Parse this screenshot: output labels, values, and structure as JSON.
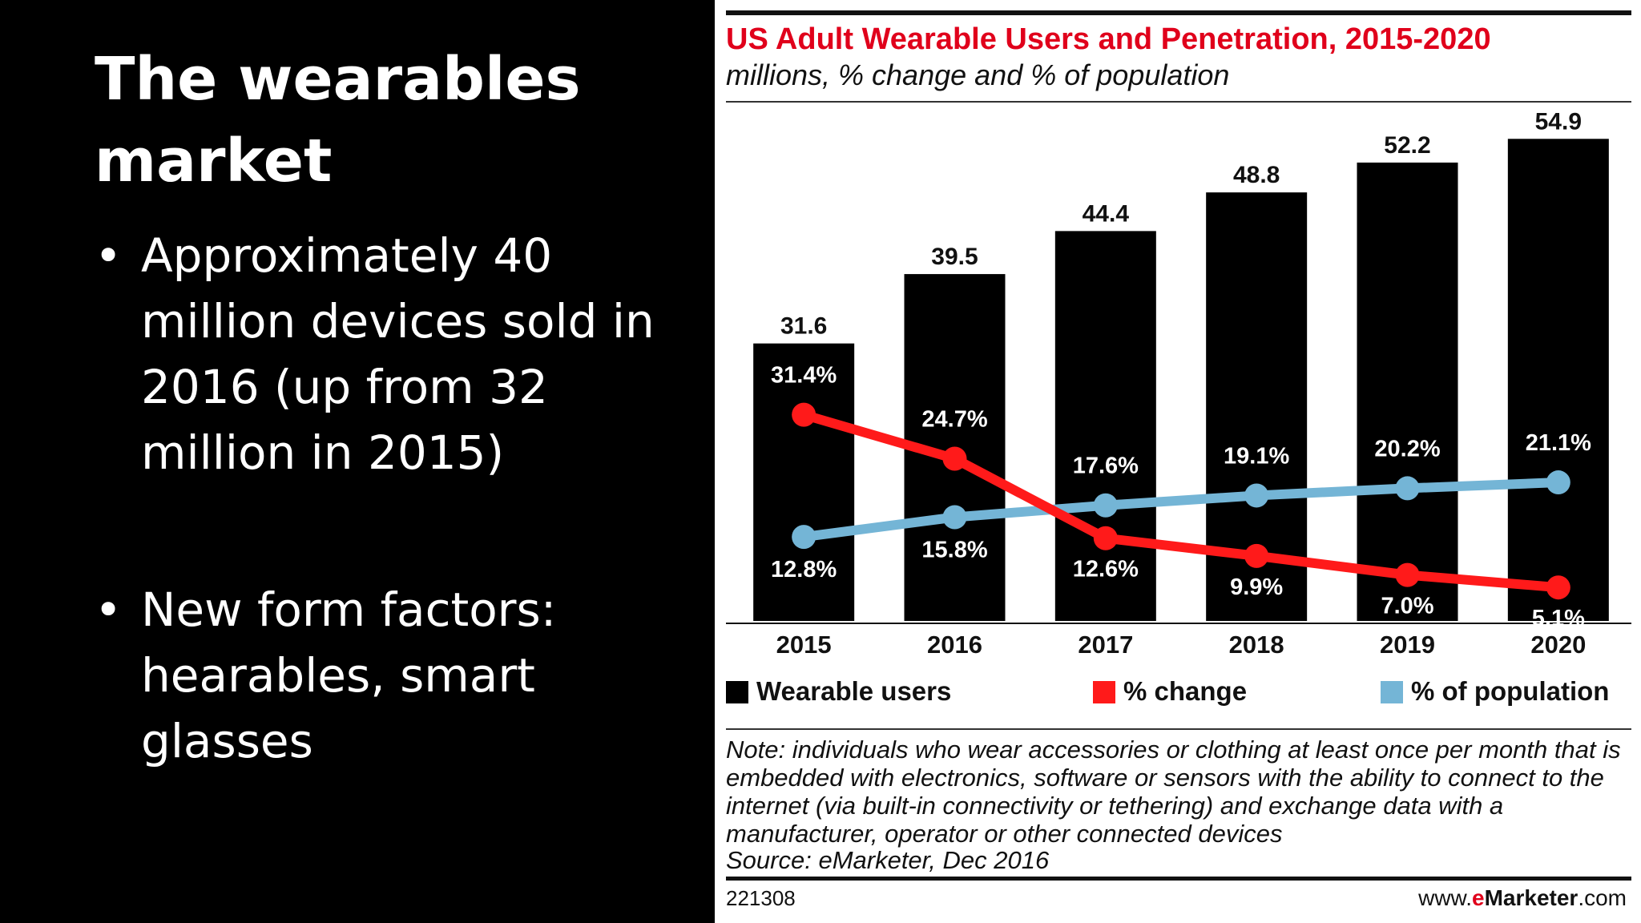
{
  "slide": {
    "title": "The wearables market",
    "bullets": [
      "Approximately 40 million devices sold in 2016 (up from 32 million in 2015)",
      "New form factors: hearables, smart glasses"
    ]
  },
  "chart_data": {
    "type": "bar",
    "title": "US Adult Wearable Users and Penetration, 2015-2020",
    "subtitle": "millions, % change and % of population",
    "categories": [
      "2015",
      "2016",
      "2017",
      "2018",
      "2019",
      "2020"
    ],
    "series": [
      {
        "name": "Wearable users",
        "type": "bar",
        "color": "#000000",
        "values": [
          31.6,
          39.5,
          44.4,
          48.8,
          52.2,
          54.9
        ],
        "labels": [
          "31.6",
          "39.5",
          "44.4",
          "48.8",
          "52.2",
          "54.9"
        ]
      },
      {
        "name": "% change",
        "type": "line",
        "color": "#ff1a1a",
        "values": [
          31.4,
          24.7,
          12.6,
          9.9,
          7.0,
          5.1
        ],
        "labels": [
          "31.4%",
          "24.7%",
          "12.6%",
          "9.9%",
          "7.0%",
          "5.1%"
        ]
      },
      {
        "name": "% of population",
        "type": "line",
        "color": "#74b5d6",
        "values": [
          12.8,
          15.8,
          17.6,
          19.1,
          20.2,
          21.1
        ],
        "labels": [
          "12.8%",
          "15.8%",
          "17.6%",
          "19.1%",
          "20.2%",
          "21.1%"
        ]
      }
    ],
    "legend_position": "bottom",
    "grid": false,
    "note": "Note: individuals who wear accessories or clothing at least once per month that is embedded with electronics, software or sensors with the ability to connect to the internet (via built-in connectivity or tethering) and exchange data with a manufacturer, operator or other connected devices",
    "source": "Source: eMarketer, Dec 2016",
    "chart_id": "221308",
    "brand": {
      "prefix": "www.",
      "accent": "e",
      "core": "Marketer",
      "suffix": ".com"
    }
  },
  "colors": {
    "title_red": "#e0001b",
    "bar_black": "#000000",
    "change_red": "#ff1a1a",
    "population_blue": "#74b5d6"
  }
}
